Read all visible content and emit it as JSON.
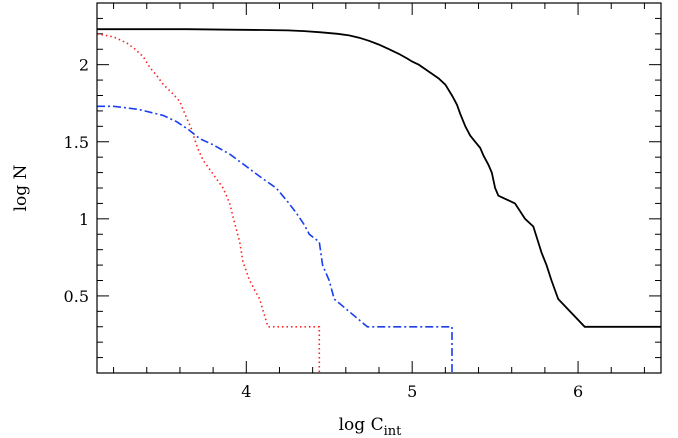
{
  "chart_data": {
    "type": "line",
    "title": "",
    "xlabel": "log C",
    "xlabel_sub": "int",
    "ylabel": "log N",
    "xlim": [
      3.1,
      6.5
    ],
    "ylim": [
      0.0,
      2.4
    ],
    "xticks": [
      {
        "value": 4,
        "label": "4"
      },
      {
        "value": 5,
        "label": "5"
      },
      {
        "value": 6,
        "label": "6"
      }
    ],
    "yticks": [
      {
        "value": 0.5,
        "label": "0.5"
      },
      {
        "value": 1,
        "label": "1"
      },
      {
        "value": 1.5,
        "label": "1.5"
      },
      {
        "value": 2,
        "label": "2"
      }
    ],
    "x_minor_step": 0.2,
    "y_minor_step": 0.1,
    "grid": false,
    "legend": "none",
    "series": [
      {
        "color": "#000000",
        "style": "solid",
        "points": [
          [
            3.1,
            2.23
          ],
          [
            3.65,
            2.23
          ],
          [
            3.9,
            2.227
          ],
          [
            4.1,
            2.225
          ],
          [
            4.25,
            2.222
          ],
          [
            4.35,
            2.218
          ],
          [
            4.45,
            2.21
          ],
          [
            4.55,
            2.2
          ],
          [
            4.62,
            2.19
          ],
          [
            4.68,
            2.175
          ],
          [
            4.74,
            2.155
          ],
          [
            4.8,
            2.13
          ],
          [
            4.86,
            2.1
          ],
          [
            4.92,
            2.07
          ],
          [
            4.97,
            2.04
          ],
          [
            5.0,
            2.02
          ],
          [
            5.04,
            2.0
          ],
          [
            5.08,
            1.97
          ],
          [
            5.12,
            1.94
          ],
          [
            5.16,
            1.91
          ],
          [
            5.2,
            1.87
          ],
          [
            5.24,
            1.8
          ],
          [
            5.27,
            1.74
          ],
          [
            5.29,
            1.68
          ],
          [
            5.32,
            1.6
          ],
          [
            5.35,
            1.54
          ],
          [
            5.38,
            1.5
          ],
          [
            5.41,
            1.46
          ],
          [
            5.43,
            1.41
          ],
          [
            5.46,
            1.35
          ],
          [
            5.48,
            1.3
          ],
          [
            5.5,
            1.2
          ],
          [
            5.52,
            1.15
          ],
          [
            5.62,
            1.1
          ],
          [
            5.68,
            1.0
          ],
          [
            5.73,
            0.95
          ],
          [
            5.76,
            0.85
          ],
          [
            5.78,
            0.78
          ],
          [
            5.81,
            0.7
          ],
          [
            5.84,
            0.6
          ],
          [
            5.88,
            0.48
          ],
          [
            6.04,
            0.3
          ],
          [
            6.5,
            0.3
          ]
        ]
      },
      {
        "color": "#ff2020",
        "style": "dotted",
        "points": [
          [
            3.1,
            2.2
          ],
          [
            3.2,
            2.18
          ],
          [
            3.28,
            2.14
          ],
          [
            3.33,
            2.1
          ],
          [
            3.38,
            2.05
          ],
          [
            3.42,
            1.98
          ],
          [
            3.46,
            1.93
          ],
          [
            3.5,
            1.87
          ],
          [
            3.55,
            1.82
          ],
          [
            3.6,
            1.76
          ],
          [
            3.63,
            1.68
          ],
          [
            3.67,
            1.58
          ],
          [
            3.69,
            1.51
          ],
          [
            3.71,
            1.45
          ],
          [
            3.74,
            1.38
          ],
          [
            3.78,
            1.32
          ],
          [
            3.82,
            1.26
          ],
          [
            3.86,
            1.2
          ],
          [
            3.9,
            1.1
          ],
          [
            3.93,
            0.97
          ],
          [
            3.96,
            0.85
          ],
          [
            3.98,
            0.72
          ],
          [
            4.02,
            0.6
          ],
          [
            4.08,
            0.48
          ],
          [
            4.13,
            0.3
          ],
          [
            4.44,
            0.3
          ],
          [
            4.44,
            0.0
          ]
        ]
      },
      {
        "color": "#1a3ff0",
        "style": "dashdot",
        "points": [
          [
            3.1,
            1.73
          ],
          [
            3.2,
            1.73
          ],
          [
            3.35,
            1.71
          ],
          [
            3.5,
            1.67
          ],
          [
            3.58,
            1.63
          ],
          [
            3.65,
            1.58
          ],
          [
            3.72,
            1.52
          ],
          [
            3.8,
            1.48
          ],
          [
            3.85,
            1.45
          ],
          [
            3.9,
            1.42
          ],
          [
            3.95,
            1.38
          ],
          [
            4.0,
            1.34
          ],
          [
            4.05,
            1.3
          ],
          [
            4.1,
            1.26
          ],
          [
            4.18,
            1.2
          ],
          [
            4.25,
            1.11
          ],
          [
            4.3,
            1.04
          ],
          [
            4.35,
            0.96
          ],
          [
            4.38,
            0.9
          ],
          [
            4.44,
            0.85
          ],
          [
            4.46,
            0.7
          ],
          [
            4.5,
            0.6
          ],
          [
            4.53,
            0.48
          ],
          [
            4.73,
            0.3
          ],
          [
            5.24,
            0.3
          ],
          [
            5.24,
            0.0
          ]
        ]
      }
    ]
  }
}
